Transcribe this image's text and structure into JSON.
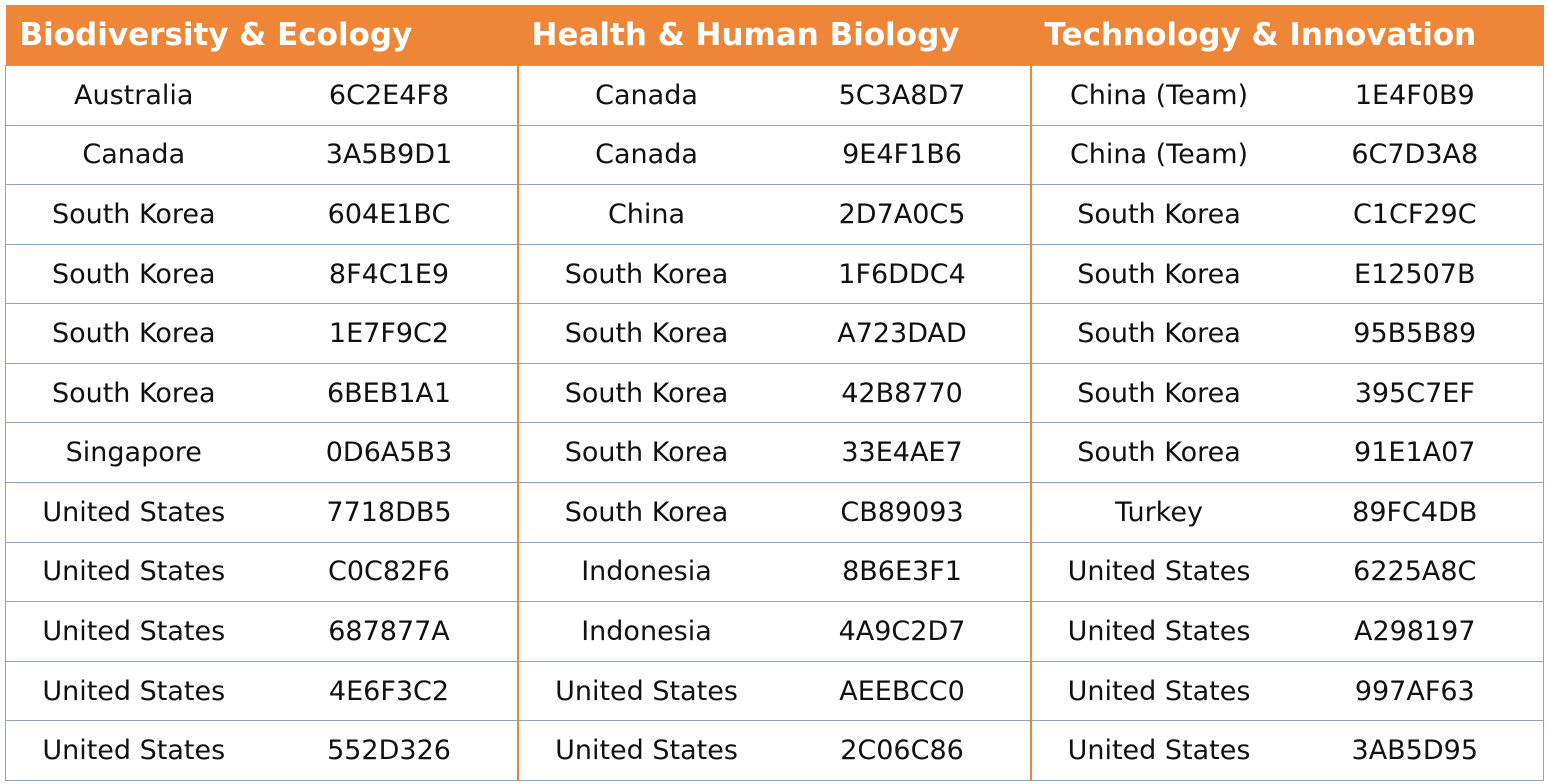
{
  "colors": {
    "header_bg": "#ef8537",
    "header_text": "#ffffff",
    "grid": "#8da4c8",
    "separator": "#ef8537"
  },
  "table": {
    "groups": [
      {
        "title": "Biodiversity & Ecology",
        "rows": [
          {
            "country": "Australia",
            "code": "6C2E4F8"
          },
          {
            "country": "Canada",
            "code": "3A5B9D1"
          },
          {
            "country": "South Korea",
            "code": "604E1BC"
          },
          {
            "country": "South Korea",
            "code": "8F4C1E9"
          },
          {
            "country": "South Korea",
            "code": "1E7F9C2"
          },
          {
            "country": "South Korea",
            "code": "6BEB1A1"
          },
          {
            "country": "Singapore",
            "code": "0D6A5B3"
          },
          {
            "country": "United States",
            "code": "7718DB5"
          },
          {
            "country": "United States",
            "code": "C0C82F6"
          },
          {
            "country": "United States",
            "code": "687877A"
          },
          {
            "country": "United States",
            "code": "4E6F3C2"
          },
          {
            "country": "United States",
            "code": "552D326"
          }
        ]
      },
      {
        "title": "Health & Human Biology",
        "rows": [
          {
            "country": "Canada",
            "code": "5C3A8D7"
          },
          {
            "country": "Canada",
            "code": "9E4F1B6"
          },
          {
            "country": "China",
            "code": "2D7A0C5"
          },
          {
            "country": "South Korea",
            "code": "1F6DDC4"
          },
          {
            "country": "South Korea",
            "code": "A723DAD"
          },
          {
            "country": "South Korea",
            "code": "42B8770"
          },
          {
            "country": "South Korea",
            "code": "33E4AE7"
          },
          {
            "country": "South Korea",
            "code": "CB89093"
          },
          {
            "country": "Indonesia",
            "code": "8B6E3F1"
          },
          {
            "country": "Indonesia",
            "code": "4A9C2D7"
          },
          {
            "country": "United States",
            "code": "AEEBCC0"
          },
          {
            "country": "United States",
            "code": "2C06C86"
          }
        ]
      },
      {
        "title": "Technology & Innovation",
        "rows": [
          {
            "country": "China (Team)",
            "code": "1E4F0B9"
          },
          {
            "country": "China (Team)",
            "code": "6C7D3A8"
          },
          {
            "country": "South Korea",
            "code": "C1CF29C"
          },
          {
            "country": "South Korea",
            "code": "E12507B"
          },
          {
            "country": "South Korea",
            "code": "95B5B89"
          },
          {
            "country": "South Korea",
            "code": "395C7EF"
          },
          {
            "country": "South Korea",
            "code": "91E1A07"
          },
          {
            "country": "Turkey",
            "code": "89FC4DB"
          },
          {
            "country": "United States",
            "code": "6225A8C"
          },
          {
            "country": "United States",
            "code": "A298197"
          },
          {
            "country": "United States",
            "code": "997AF63"
          },
          {
            "country": "United States",
            "code": "3AB5D95"
          }
        ]
      }
    ]
  }
}
